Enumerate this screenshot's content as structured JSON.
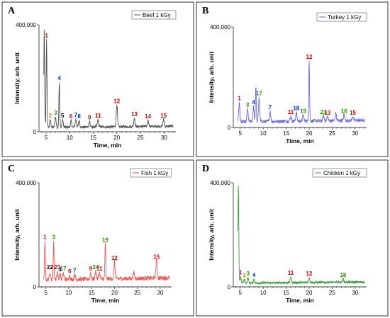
{
  "panel_letters": [
    "A",
    "B",
    "C",
    "D"
  ],
  "chart_data": [
    {
      "panel": "A",
      "type": "line",
      "legend": "Beef 1 kGy",
      "color": "#505050",
      "xlabel": "Time, min",
      "ylabel": "Intensity, arb. unit",
      "xlim": [
        3.5,
        32.5
      ],
      "ylim": [
        0,
        400000
      ],
      "xticks": [
        5,
        10,
        15,
        20,
        25,
        30
      ],
      "ytick_labels": [
        {
          "value": 0,
          "label": "0"
        },
        {
          "value": 400000,
          "label": "400,000"
        }
      ],
      "baseline": 18000,
      "peaks": [
        {
          "x": 4.6,
          "y": 380000,
          "label": "",
          "color": ""
        },
        {
          "x": 5.1,
          "y": 345000,
          "label": "1",
          "color": "#cc0000"
        },
        {
          "x": 5.9,
          "y": 45000,
          "label": "2",
          "color": "#e08000"
        },
        {
          "x": 7.0,
          "y": 55000,
          "label": "3",
          "color": "#2e8b00"
        },
        {
          "x": 7.8,
          "y": 185000,
          "label": "4",
          "color": "#0033cc"
        },
        {
          "x": 8.5,
          "y": 45000,
          "label": "5",
          "color": "#000000"
        },
        {
          "x": 10.3,
          "y": 42000,
          "label": "6",
          "color": "#cc0000"
        },
        {
          "x": 11.3,
          "y": 48000,
          "label": "7",
          "color": "#0033cc"
        },
        {
          "x": 12.0,
          "y": 42000,
          "label": "8",
          "color": "#0033cc"
        },
        {
          "x": 14.2,
          "y": 38000,
          "label": "9",
          "color": "#cc0000"
        },
        {
          "x": 16.0,
          "y": 45000,
          "label": "11",
          "color": "#cc0000"
        },
        {
          "x": 20.0,
          "y": 100000,
          "label": "12",
          "color": "#cc0000"
        },
        {
          "x": 23.7,
          "y": 50000,
          "label": "13",
          "color": "#cc0000"
        },
        {
          "x": 26.6,
          "y": 42000,
          "label": "14",
          "color": "#cc0000"
        },
        {
          "x": 29.9,
          "y": 45000,
          "label": "15",
          "color": "#cc0000"
        }
      ]
    },
    {
      "panel": "B",
      "type": "line",
      "legend": "Turkey 1 kGy",
      "color": "#6a6ad8",
      "xlabel": "Time, min",
      "ylabel": "Intensity, arb. unit",
      "xlim": [
        3.5,
        32.5
      ],
      "ylim": [
        0,
        400000
      ],
      "xticks": [
        5,
        10,
        15,
        20,
        25,
        30
      ],
      "ytick_labels": [
        {
          "value": 0,
          "label": "0"
        },
        {
          "value": 400000,
          "label": "400,000"
        }
      ],
      "baseline": 25000,
      "peaks": [
        {
          "x": 4.8,
          "y": 100000,
          "label": "1",
          "color": "#cc0000"
        },
        {
          "x": 6.6,
          "y": 75000,
          "label": "3",
          "color": "#2e8b00"
        },
        {
          "x": 7.9,
          "y": 85000,
          "label": "4",
          "color": "#0033cc"
        },
        {
          "x": 8.4,
          "y": 165000,
          "label": "",
          "color": ""
        },
        {
          "x": 9.1,
          "y": 120000,
          "label": "17",
          "color": "#2e8b00"
        },
        {
          "x": 11.5,
          "y": 65000,
          "label": "7",
          "color": "#0033cc"
        },
        {
          "x": 16.0,
          "y": 45000,
          "label": "11",
          "color": "#cc0000"
        },
        {
          "x": 17.2,
          "y": 60000,
          "label": "18",
          "color": "#0033cc"
        },
        {
          "x": 18.7,
          "y": 50000,
          "label": "19",
          "color": "#2e8b00"
        },
        {
          "x": 20.0,
          "y": 265000,
          "label": "12",
          "color": "#cc0000"
        },
        {
          "x": 23.1,
          "y": 45000,
          "label": "21",
          "color": "#2e8b00"
        },
        {
          "x": 24.0,
          "y": 42000,
          "label": "13",
          "color": "#cc0000"
        },
        {
          "x": 25.8,
          "y": 55000,
          "label": "",
          "color": ""
        },
        {
          "x": 27.6,
          "y": 50000,
          "label": "16",
          "color": "#2e8b00"
        },
        {
          "x": 29.5,
          "y": 42000,
          "label": "15",
          "color": "#cc0000"
        }
      ]
    },
    {
      "panel": "C",
      "type": "line",
      "legend": "Fish 1 kGy",
      "color": "#e85a5a",
      "xlabel": "Time, min",
      "ylabel": "Intensity, arb. unit",
      "xlim": [
        3.5,
        32.5
      ],
      "ylim": [
        0,
        400000
      ],
      "xticks": [
        5,
        10,
        15,
        20,
        25,
        30
      ],
      "ytick_labels": [
        {
          "value": 0,
          "label": "0"
        },
        {
          "value": 400000,
          "label": "400,000"
        }
      ],
      "baseline": 30000,
      "peaks": [
        {
          "x": 4.8,
          "y": 175000,
          "label": "1",
          "color": "#cc0000"
        },
        {
          "x": 5.9,
          "y": 60000,
          "label": "22",
          "color": "#000000"
        },
        {
          "x": 6.7,
          "y": 175000,
          "label": "3",
          "color": "#2e8b00"
        },
        {
          "x": 7.5,
          "y": 60000,
          "label": "23",
          "color": "#cc0000"
        },
        {
          "x": 8.1,
          "y": 50000,
          "label": "4",
          "color": "#0033cc"
        },
        {
          "x": 8.8,
          "y": 55000,
          "label": "17",
          "color": "#2e8b00"
        },
        {
          "x": 10.2,
          "y": 45000,
          "label": "6",
          "color": "#cc0000"
        },
        {
          "x": 11.3,
          "y": 48000,
          "label": "7",
          "color": "#0033cc"
        },
        {
          "x": 14.8,
          "y": 55000,
          "label": "9",
          "color": "#cc0000"
        },
        {
          "x": 15.9,
          "y": 60000,
          "label": "24",
          "color": "#2e8b00"
        },
        {
          "x": 16.7,
          "y": 55000,
          "label": "11",
          "color": "#cc0000"
        },
        {
          "x": 18.0,
          "y": 165000,
          "label": "19",
          "color": "#2e8b00"
        },
        {
          "x": 20.0,
          "y": 95000,
          "label": "12",
          "color": "#cc0000"
        },
        {
          "x": 24.2,
          "y": 55000,
          "label": "",
          "color": ""
        },
        {
          "x": 29.2,
          "y": 100000,
          "label": "15",
          "color": "#cc0000"
        }
      ]
    },
    {
      "panel": "D",
      "type": "line",
      "legend": "Chicken 1 kGy",
      "color": "#3a9a3a",
      "xlabel": "Time, min",
      "ylabel": "Intensity, arb. unit",
      "xlim": [
        3.5,
        32.5
      ],
      "ylim": [
        0,
        400000
      ],
      "xticks": [
        5,
        10,
        15,
        20,
        25,
        30
      ],
      "ytick_labels": [
        {
          "value": 0,
          "label": "0"
        },
        {
          "value": 400000,
          "label": "400,000"
        }
      ],
      "baseline": 16000,
      "peaks": [
        {
          "x": 4.6,
          "y": 385000,
          "label": "",
          "color": ""
        },
        {
          "x": 5.1,
          "y": 40000,
          "label": "1",
          "color": "#cc0000"
        },
        {
          "x": 5.9,
          "y": 30000,
          "label": "2",
          "color": "#e08000"
        },
        {
          "x": 6.7,
          "y": 35000,
          "label": "3",
          "color": "#2e8b00"
        },
        {
          "x": 8.0,
          "y": 30000,
          "label": "4",
          "color": "#0033cc"
        },
        {
          "x": 16.0,
          "y": 38000,
          "label": "11",
          "color": "#cc0000"
        },
        {
          "x": 20.0,
          "y": 35000,
          "label": "12",
          "color": "#cc0000"
        },
        {
          "x": 27.4,
          "y": 30000,
          "label": "16",
          "color": "#2e8b00"
        }
      ]
    }
  ]
}
